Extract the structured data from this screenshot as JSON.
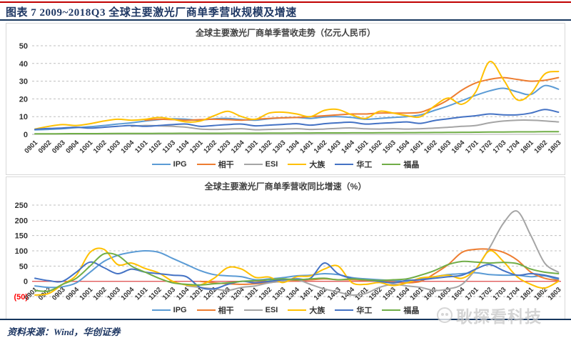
{
  "header": {
    "title": "图表 7  2009~2018Q3 全球主要激光厂商单季营收规模及增速"
  },
  "footer": {
    "source": "资料来源：Wind，华创证券"
  },
  "watermark": {
    "text": "耿探看科技",
    "logo_icon": "circle-face-icon"
  },
  "colors": {
    "header_text": "#1F3864",
    "top_rule": "#C00000",
    "separator": "#17375E",
    "grid_dashed": "#BFBFBF",
    "zero_axis_chart1": "#BFBFBF",
    "zero_axis_chart2": "#E05A5A",
    "negative_tick": "#FF0000",
    "series": {
      "IPG": "#5B9BD5",
      "相干": "#ED7D31",
      "ESI": "#A5A5A5",
      "大族": "#FFC000",
      "华工": "#4472C4",
      "福晶": "#70AD47"
    }
  },
  "chart_data": [
    {
      "type": "line",
      "title": "全球主要激光厂商单季营收走势（亿元人民币）",
      "xlabel": "",
      "ylabel": "",
      "ylim": [
        0,
        50
      ],
      "yticks": [
        0,
        10,
        20,
        30,
        40,
        50
      ],
      "ytick_labels": [
        "0",
        "10",
        "20",
        "30",
        "40",
        "50"
      ],
      "grid": "horizontal-dashed",
      "legend_position": "bottom",
      "categories": [
        "0901",
        "0902",
        "0903",
        "0904",
        "1001",
        "1002",
        "1003",
        "1004",
        "1101",
        "1102",
        "1103",
        "1104",
        "1201",
        "1202",
        "1203",
        "1204",
        "1301",
        "1302",
        "1303",
        "1304",
        "1401",
        "1402",
        "1403",
        "1404",
        "1501",
        "1502",
        "1503",
        "1504",
        "1601",
        "1602",
        "1603",
        "1604",
        "1701",
        "1702",
        "1703",
        "1704",
        "1801",
        "1802",
        "1803"
      ],
      "series": [
        {
          "name": "IPG",
          "color": "#5B9BD5",
          "values": [
            2.5,
            2.8,
            3.2,
            3.8,
            4.3,
            5.0,
            5.8,
            6.5,
            7.5,
            8.3,
            8.8,
            8.5,
            8.0,
            8.8,
            9.0,
            8.3,
            8.0,
            8.8,
            9.3,
            9.5,
            9.0,
            9.8,
            10.0,
            9.5,
            8.5,
            9.0,
            9.5,
            10.0,
            11.0,
            13.5,
            16.0,
            19.0,
            22.0,
            24.5,
            26.0,
            24.0,
            22.5,
            27.5,
            25.5
          ]
        },
        {
          "name": "相干",
          "color": "#ED7D31",
          "values": [
            null,
            null,
            null,
            null,
            null,
            null,
            null,
            null,
            8.0,
            8.5,
            8.3,
            8.0,
            8.3,
            8.5,
            8.3,
            8.0,
            8.5,
            9.0,
            9.3,
            9.5,
            10.0,
            10.5,
            11.0,
            11.5,
            11.5,
            12.0,
            12.0,
            12.0,
            12.5,
            15.5,
            19.5,
            25.0,
            29.0,
            31.0,
            32.0,
            31.0,
            30.0,
            30.5,
            32.0
          ]
        },
        {
          "name": "ESI",
          "color": "#A5A5A5",
          "values": [
            null,
            null,
            null,
            null,
            null,
            null,
            null,
            4.5,
            5.0,
            4.8,
            4.5,
            4.0,
            3.0,
            2.8,
            3.0,
            3.2,
            2.6,
            2.8,
            3.0,
            3.2,
            2.8,
            3.0,
            3.4,
            3.6,
            3.1,
            3.0,
            3.2,
            3.0,
            3.2,
            3.5,
            4.0,
            4.5,
            5.0,
            6.5,
            7.5,
            8.0,
            8.0,
            7.6,
            7.0
          ]
        },
        {
          "name": "大族",
          "color": "#FFC000",
          "values": [
            3.0,
            4.5,
            5.5,
            5.0,
            6.0,
            7.5,
            8.5,
            8.0,
            8.5,
            9.5,
            8.5,
            7.0,
            7.5,
            10.5,
            13.0,
            10.0,
            8.5,
            12.0,
            12.5,
            11.5,
            10.0,
            13.5,
            14.0,
            11.0,
            9.0,
            13.0,
            12.0,
            10.5,
            10.0,
            16.0,
            20.5,
            17.0,
            24.0,
            41.0,
            31.0,
            19.5,
            23.0,
            34.0,
            35.5
          ]
        },
        {
          "name": "华工",
          "color": "#4472C4",
          "values": [
            2.8,
            3.3,
            3.6,
            4.0,
            3.5,
            4.0,
            4.5,
            5.0,
            4.5,
            5.0,
            5.5,
            5.8,
            4.5,
            5.0,
            5.5,
            5.8,
            4.8,
            5.2,
            5.6,
            6.0,
            5.2,
            6.0,
            6.5,
            6.8,
            5.8,
            6.2,
            6.6,
            7.0,
            6.2,
            7.8,
            8.8,
            9.8,
            10.5,
            11.5,
            11.0,
            11.0,
            12.0,
            14.0,
            12.5
          ]
        },
        {
          "name": "福晶",
          "color": "#70AD47",
          "values": [
            0.3,
            0.3,
            0.35,
            0.4,
            0.4,
            0.45,
            0.5,
            0.5,
            0.5,
            0.55,
            0.55,
            0.6,
            0.6,
            0.6,
            0.65,
            0.65,
            0.65,
            0.7,
            0.7,
            0.75,
            0.75,
            0.8,
            0.8,
            0.85,
            0.85,
            0.9,
            0.9,
            0.95,
            1.0,
            1.05,
            1.1,
            1.15,
            1.2,
            1.3,
            1.3,
            1.4,
            1.4,
            1.5,
            1.5
          ]
        }
      ]
    },
    {
      "type": "line",
      "title": "全球主要激光厂商单季营收同比增速（%）",
      "xlabel": "",
      "ylabel": "",
      "ylim": [
        -50,
        250
      ],
      "yticks": [
        -50,
        0,
        50,
        100,
        150,
        200,
        250
      ],
      "ytick_labels": [
        "(50)",
        "0",
        "50",
        "100",
        "150",
        "200",
        "250"
      ],
      "grid": "horizontal-dashed",
      "legend_position": "bottom",
      "zero_line_color": "#E05A5A",
      "categories": [
        "0901",
        "0902",
        "0903",
        "0904",
        "1001",
        "1002",
        "1003",
        "1004",
        "1101",
        "1102",
        "1103",
        "1104",
        "1201",
        "1202",
        "1203",
        "1204",
        "1301",
        "1302",
        "1303",
        "1304",
        "1401",
        "1402",
        "1403",
        "1404",
        "1501",
        "1502",
        "1503",
        "1504",
        "1601",
        "1602",
        "1603",
        "1604",
        "1701",
        "1702",
        "1703",
        "1704",
        "1801",
        "1802",
        "1803"
      ],
      "series": [
        {
          "name": "IPG",
          "color": "#5B9BD5",
          "values": [
            -15,
            -20,
            -18,
            -5,
            30,
            65,
            85,
            95,
            100,
            95,
            75,
            55,
            35,
            22,
            18,
            15,
            5,
            8,
            12,
            18,
            20,
            25,
            22,
            12,
            8,
            5,
            3,
            0,
            8,
            15,
            22,
            25,
            28,
            22,
            20,
            20,
            15,
            18,
            5
          ]
        },
        {
          "name": "相干",
          "color": "#ED7D31",
          "values": [
            null,
            null,
            null,
            null,
            null,
            null,
            null,
            null,
            null,
            null,
            null,
            null,
            0,
            -5,
            -8,
            -10,
            -8,
            -4,
            0,
            3,
            5,
            8,
            5,
            5,
            3,
            0,
            -3,
            -5,
            0,
            25,
            55,
            95,
            105,
            105,
            95,
            70,
            30,
            10,
            3
          ]
        },
        {
          "name": "ESI",
          "color": "#A5A5A5",
          "values": [
            null,
            null,
            null,
            null,
            null,
            null,
            null,
            null,
            null,
            null,
            null,
            -15,
            -20,
            -25,
            -30,
            -20,
            -15,
            -5,
            0,
            5,
            -10,
            -25,
            -35,
            -45,
            -40,
            -20,
            -10,
            -15,
            -20,
            -30,
            -25,
            -10,
            40,
            110,
            190,
            230,
            150,
            60,
            30
          ]
        },
        {
          "name": "大族",
          "color": "#FFC000",
          "values": [
            -45,
            -40,
            -10,
            20,
            95,
            105,
            55,
            60,
            42,
            27,
            0,
            -12,
            -12,
            10,
            45,
            40,
            13,
            14,
            -4,
            15,
            18,
            40,
            50,
            -4,
            -10,
            -4,
            -14,
            -5,
            11,
            15,
            20,
            10,
            40,
            100,
            65,
            15,
            -10,
            -22,
            0
          ]
        },
        {
          "name": "华工",
          "color": "#4472C4",
          "values": [
            10,
            2,
            0,
            30,
            63,
            45,
            25,
            40,
            30,
            25,
            20,
            15,
            -20,
            -25,
            -10,
            0,
            -5,
            0,
            5,
            8,
            10,
            60,
            25,
            10,
            5,
            0,
            -5,
            3,
            5,
            10,
            15,
            20,
            40,
            55,
            35,
            20,
            25,
            20,
            10
          ]
        },
        {
          "name": "福晶",
          "color": "#70AD47",
          "values": [
            -30,
            -32,
            -10,
            10,
            50,
            90,
            85,
            50,
            30,
            10,
            -5,
            -10,
            -12,
            -8,
            -5,
            0,
            2,
            5,
            8,
            5,
            8,
            10,
            5,
            8,
            5,
            3,
            5,
            8,
            20,
            35,
            55,
            65,
            63,
            60,
            62,
            58,
            40,
            30,
            25
          ]
        }
      ]
    }
  ]
}
